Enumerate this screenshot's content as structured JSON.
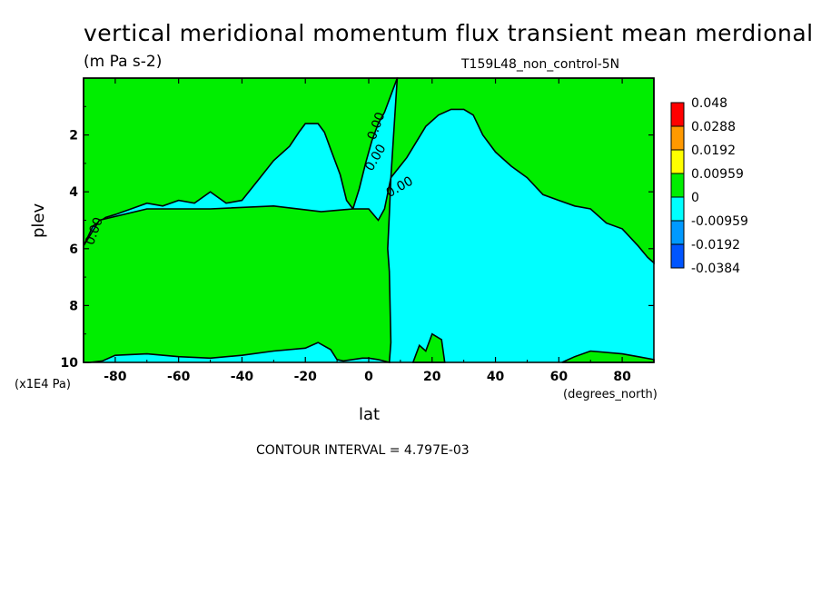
{
  "chart_data": {
    "type": "heatmap",
    "title": "vertical meridional momentum flux transient mean merdional",
    "units": "(m Pa s-2)",
    "run_label": "T159L48_non_control-5N",
    "xlabel": "lat",
    "ylabel": "plev",
    "x_units": "(degrees_north)",
    "y_units": "(x1E4 Pa)",
    "xlim": [
      -90,
      90
    ],
    "ylim": [
      10,
      0
    ],
    "x_ticks": [
      -80,
      -60,
      -40,
      -20,
      0,
      20,
      40,
      60,
      80
    ],
    "y_ticks": [
      2,
      4,
      6,
      8,
      10
    ],
    "contour_interval_text": "CONTOUR INTERVAL = 4.797E-03",
    "contour_labels": [
      "0.00",
      "0.00",
      "0.00",
      "0.00"
    ],
    "colorbar": {
      "labels": [
        "0.048",
        "0.0288",
        "0.0192",
        "0.00959",
        "0",
        "-0.00959",
        "-0.0192",
        "-0.0384"
      ],
      "colors": [
        "#ff0000",
        "#ff9900",
        "#ffff00",
        "#00ee00",
        "#00ffff",
        "#0099ff",
        "#0055ff"
      ]
    },
    "regions": [
      {
        "sign": "positive",
        "color": "#00ee00",
        "boundary": [
          [
            -90,
            5.9
          ],
          [
            -87,
            5.2
          ],
          [
            -83,
            4.9
          ],
          [
            -80,
            4.8
          ],
          [
            -75,
            4.6
          ],
          [
            -70,
            4.4
          ],
          [
            -65,
            4.5
          ],
          [
            -60,
            4.3
          ],
          [
            -55,
            4.4
          ],
          [
            -50,
            4.0
          ],
          [
            -45,
            4.4
          ],
          [
            -40,
            4.3
          ],
          [
            -35,
            3.6
          ],
          [
            -30,
            2.9
          ],
          [
            -25,
            2.4
          ],
          [
            -22,
            1.9
          ],
          [
            -20,
            1.6
          ],
          [
            -16,
            1.6
          ],
          [
            -14,
            1.9
          ],
          [
            -12,
            2.5
          ],
          [
            -9,
            3.4
          ],
          [
            -7,
            4.3
          ],
          [
            -5,
            4.6
          ],
          [
            -3,
            3.9
          ],
          [
            -1,
            3.0
          ],
          [
            1,
            2.2
          ],
          [
            3,
            1.6
          ],
          [
            5,
            1.2
          ],
          [
            7,
            0.6
          ],
          [
            9,
            0.0
          ],
          [
            -90,
            0.0
          ]
        ]
      },
      {
        "sign": "positive",
        "color": "#00ee00",
        "boundary": [
          [
            -90,
            5.9
          ],
          [
            -90,
            10
          ],
          [
            -88,
            10
          ],
          [
            -84,
            9.95
          ],
          [
            -80,
            9.75
          ],
          [
            -70,
            9.7
          ],
          [
            -60,
            9.8
          ],
          [
            -50,
            9.85
          ],
          [
            -40,
            9.75
          ],
          [
            -30,
            9.6
          ],
          [
            -20,
            9.5
          ],
          [
            -16,
            9.3
          ],
          [
            -12,
            9.55
          ],
          [
            -10,
            9.9
          ],
          [
            -8,
            9.95
          ],
          [
            -2,
            9.85
          ],
          [
            0,
            9.85
          ],
          [
            3,
            9.9
          ],
          [
            6.5,
            10
          ],
          [
            7,
            9.3
          ],
          [
            6.5,
            6.8
          ],
          [
            6,
            6.0
          ],
          [
            6.5,
            4.8
          ],
          [
            7,
            3.5
          ],
          [
            5,
            4.6
          ],
          [
            3,
            5.0
          ],
          [
            0,
            4.6
          ],
          [
            -5,
            4.6
          ],
          [
            -15,
            4.7
          ],
          [
            -30,
            4.5
          ],
          [
            -50,
            4.6
          ],
          [
            -70,
            4.6
          ],
          [
            -85,
            5.0
          ]
        ]
      },
      {
        "sign": "positive",
        "color": "#00ee00",
        "boundary": [
          [
            7,
            3.5
          ],
          [
            12,
            2.8
          ],
          [
            18,
            1.7
          ],
          [
            22,
            1.3
          ],
          [
            26,
            1.1
          ],
          [
            30,
            1.1
          ],
          [
            33,
            1.3
          ],
          [
            36,
            2.0
          ],
          [
            40,
            2.6
          ],
          [
            45,
            3.1
          ],
          [
            50,
            3.5
          ],
          [
            55,
            4.1
          ],
          [
            60,
            4.3
          ],
          [
            65,
            4.5
          ],
          [
            70,
            4.6
          ],
          [
            75,
            5.1
          ],
          [
            80,
            5.3
          ],
          [
            85,
            5.9
          ],
          [
            88,
            6.3
          ],
          [
            90,
            6.5
          ],
          [
            90,
            0.0
          ],
          [
            9,
            0.0
          ]
        ]
      },
      {
        "sign": "positive",
        "color": "#00ee00",
        "boundary": [
          [
            14,
            10
          ],
          [
            16,
            9.4
          ],
          [
            18,
            9.6
          ],
          [
            20,
            9.0
          ],
          [
            23,
            9.2
          ],
          [
            24,
            10
          ]
        ]
      },
      {
        "sign": "positive",
        "color": "#00ee00",
        "boundary": [
          [
            61,
            10
          ],
          [
            65,
            9.8
          ],
          [
            70,
            9.6
          ],
          [
            80,
            9.7
          ],
          [
            85,
            9.8
          ],
          [
            90,
            9.9
          ],
          [
            90,
            10
          ]
        ]
      }
    ]
  }
}
